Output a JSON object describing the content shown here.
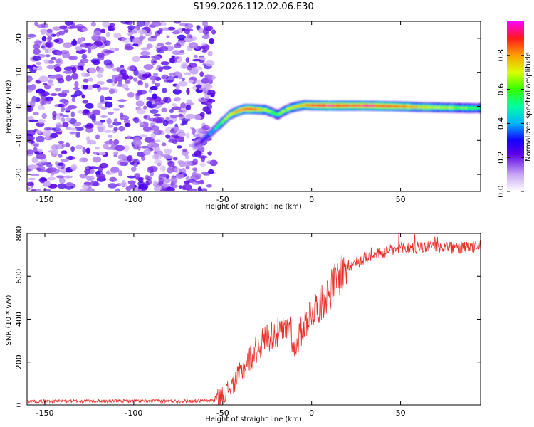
{
  "title": "S199.2026.112.02.06.E30",
  "chart_data": [
    {
      "type": "heatmap",
      "xlabel": "Height of straight line (km)",
      "ylabel": "Frequency (Hz)",
      "xlim": [
        -160,
        95
      ],
      "ylim": [
        -25,
        25
      ],
      "x_ticks": [
        -150,
        -100,
        -50,
        0,
        50
      ],
      "y_ticks": [
        -20,
        -10,
        0,
        10,
        20
      ],
      "noise_region": {
        "x_range": [
          -160,
          -57
        ],
        "y_range": [
          -25,
          25
        ],
        "description_amplitude": "0.1-0.25"
      },
      "ridge": {
        "x": [
          -66,
          -62,
          -58,
          -54,
          -50,
          -46,
          -42,
          -38,
          -34,
          -30,
          -26,
          -22,
          -19,
          -16,
          -12,
          -8,
          -4,
          0,
          10,
          20,
          30,
          40,
          50,
          60,
          70,
          80,
          90,
          95
        ],
        "y": [
          -11.5,
          -10.5,
          -8.5,
          -6.5,
          -4.5,
          -2.5,
          -1.5,
          -0.8,
          -0.8,
          -0.9,
          -1,
          -1.8,
          -2.5,
          -1.5,
          -0.5,
          0,
          0.4,
          0.3,
          0.2,
          0.2,
          0.2,
          0.1,
          0,
          -0.2,
          -0.3,
          -0.4,
          -0.5,
          -0.5
        ],
        "amp": [
          0.15,
          0.25,
          0.35,
          0.45,
          0.6,
          0.7,
          0.8,
          0.85,
          0.9,
          0.8,
          0.7,
          0.6,
          0.6,
          0.65,
          0.7,
          0.75,
          0.8,
          0.9,
          0.95,
          0.9,
          0.95,
          0.9,
          0.85,
          0.75,
          0.7,
          0.65,
          0.6,
          0.55
        ]
      },
      "colorbar": {
        "label": "Normalized spectral amplitude",
        "range": [
          0,
          1
        ],
        "ticks": [
          0.0,
          0.2,
          0.4,
          0.6,
          0.8
        ],
        "tick_labels": [
          "0.0",
          "0.2",
          "0.4",
          "0.6",
          "0.8"
        ]
      }
    },
    {
      "type": "line",
      "xlabel": "Height of straight line (km)",
      "ylabel": "SNR (10 * v/v)",
      "xlim": [
        -160,
        95
      ],
      "ylim": [
        0,
        800
      ],
      "x_ticks": [
        -150,
        -100,
        -50,
        0,
        50
      ],
      "y_ticks": [
        0,
        200,
        400,
        600,
        800
      ],
      "series": [
        {
          "name": "SNR",
          "color": "#e8302a",
          "x": [
            -160,
            -140,
            -120,
            -100,
            -80,
            -60,
            -55,
            -50,
            -45,
            -40,
            -35,
            -30,
            -25,
            -20,
            -15,
            -12,
            -10,
            -8,
            -5,
            0,
            5,
            10,
            15,
            20,
            25,
            30,
            40,
            50,
            60,
            70,
            80,
            90,
            95
          ],
          "y": [
            18,
            18,
            18,
            18,
            18,
            18,
            22,
            45,
            90,
            150,
            215,
            270,
            320,
            330,
            345,
            380,
            250,
            300,
            360,
            440,
            470,
            530,
            600,
            650,
            660,
            690,
            710,
            730,
            735,
            740,
            730,
            735,
            740
          ]
        }
      ]
    }
  ]
}
